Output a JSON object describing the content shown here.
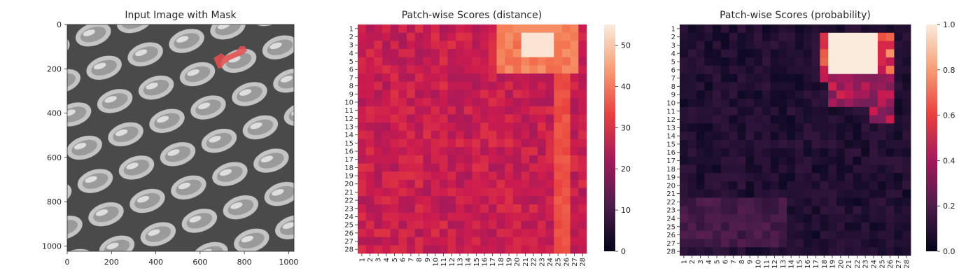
{
  "chart_data": [
    {
      "type": "image",
      "title": "Input Image with Mask",
      "xticks": [
        0,
        200,
        400,
        600,
        800,
        1000
      ],
      "yticks": [
        0,
        200,
        400,
        600,
        800,
        1000
      ],
      "xlim": [
        0,
        1024
      ],
      "ylim": [
        1024,
        0
      ],
      "mask_color": "#e8504f"
    },
    {
      "type": "heatmap",
      "title": "Patch-wise Scores (distance)",
      "rows": 28,
      "cols": 28,
      "row_labels": [
        "1",
        "2",
        "3",
        "4",
        "5",
        "6",
        "7",
        "8",
        "9",
        "10",
        "11",
        "12",
        "13",
        "14",
        "15",
        "16",
        "17",
        "18",
        "19",
        "20",
        "21",
        "22",
        "23",
        "24",
        "25",
        "26",
        "27",
        "28"
      ],
      "col_labels": [
        "1",
        "2",
        "3",
        "4",
        "5",
        "6",
        "7",
        "8",
        "9",
        "10",
        "11",
        "12",
        "13",
        "14",
        "15",
        "16",
        "17",
        "18",
        "19",
        "20",
        "21",
        "22",
        "23",
        "24",
        "25",
        "26",
        "27",
        "28"
      ],
      "colorbar": {
        "min": 0,
        "max": 55,
        "ticks": [
          0,
          10,
          20,
          30,
          40,
          50
        ]
      },
      "colormap": "rocket",
      "background_value": 27,
      "hotspot": {
        "rows": [
          1,
          6
        ],
        "cols": [
          18,
          27
        ],
        "peak": 54,
        "peak_rows": [
          2,
          4
        ],
        "peak_cols": [
          21,
          24
        ]
      },
      "right_band": {
        "cols": [
          25,
          26
        ],
        "value": 33
      }
    },
    {
      "type": "heatmap",
      "title": "Patch-wise Scores (probability)",
      "rows": 28,
      "cols": 28,
      "row_labels": [
        "1",
        "2",
        "3",
        "4",
        "5",
        "6",
        "7",
        "8",
        "9",
        "10",
        "11",
        "12",
        "13",
        "14",
        "15",
        "16",
        "17",
        "18",
        "19",
        "20",
        "21",
        "22",
        "23",
        "24",
        "25",
        "26",
        "27",
        "28"
      ],
      "col_labels": [
        "1",
        "2",
        "3",
        "4",
        "5",
        "6",
        "7",
        "8",
        "9",
        "10",
        "11",
        "12",
        "13",
        "14",
        "15",
        "16",
        "17",
        "18",
        "19",
        "20",
        "21",
        "22",
        "23",
        "24",
        "25",
        "26",
        "27",
        "28"
      ],
      "colorbar": {
        "min": 0.0,
        "max": 1.0,
        "ticks": [
          "0.0",
          "0.2",
          "0.4",
          "0.6",
          "0.8",
          "1.0"
        ]
      },
      "colormap": "rocket",
      "background_value": 0.08,
      "hotspot": {
        "rows": [
          2,
          7
        ],
        "cols": [
          18,
          26
        ],
        "peak": 1.0,
        "peak_rows": [
          2,
          6
        ],
        "peak_cols": [
          19,
          24
        ]
      },
      "right_band": {
        "cols": [
          24,
          26
        ],
        "value": 0.3
      }
    }
  ]
}
